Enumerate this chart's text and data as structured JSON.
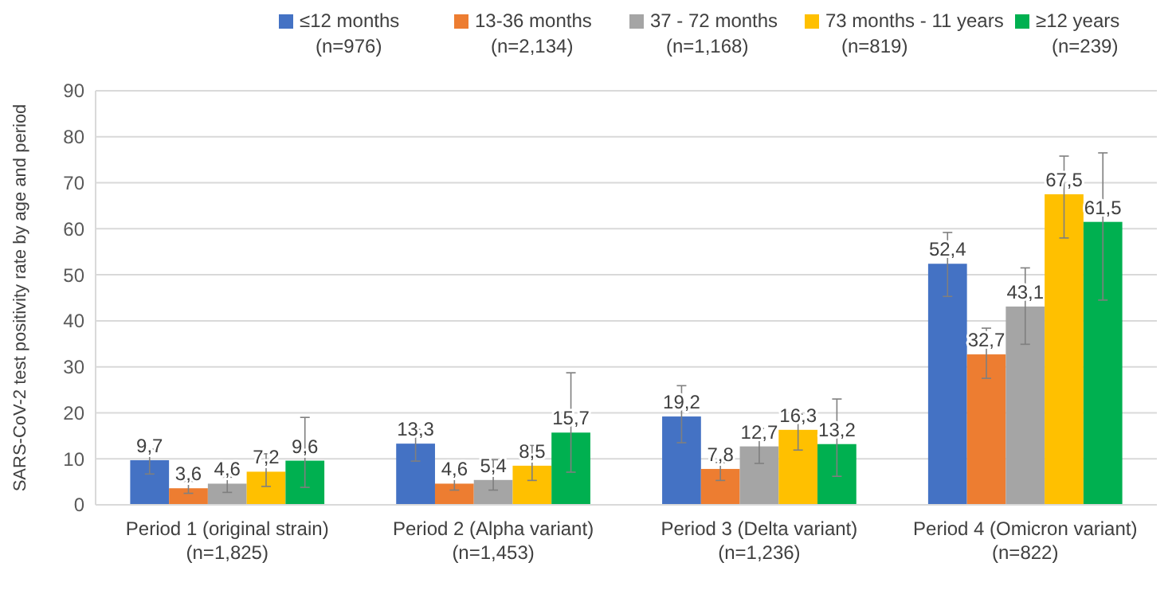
{
  "chart_data": {
    "type": "bar",
    "ylabel": "SARS-CoV-2 test positivity rate by age and period",
    "categories": [
      "Period 1 (original strain)\n(n=1,825)",
      "Period 2 (Alpha variant)\n(n=1,453)",
      "Period 3 (Delta variant)\n(n=1,236)",
      "Period 4 (Omicron variant)\n(n=822)"
    ],
    "ylim": [
      0,
      90
    ],
    "yticks": [
      0,
      10,
      20,
      30,
      40,
      50,
      60,
      70,
      80,
      90
    ],
    "grid": "y",
    "legend": "top",
    "series": [
      {
        "name": "≤12 months\n(n=976)",
        "color": "#4472c4",
        "values": [
          9.7,
          13.3,
          19.2,
          52.4
        ],
        "value_labels": [
          "9,7",
          "13,3",
          "19,2",
          "52,4"
        ],
        "errors": [
          [
            6.7,
            12.1
          ],
          [
            9.5,
            16.4
          ],
          [
            13.5,
            25.9
          ],
          [
            45.3,
            59.2
          ]
        ]
      },
      {
        "name": "13-36 months\n(n=2,134)",
        "color": "#ed7d31",
        "values": [
          3.6,
          4.6,
          7.8,
          32.7
        ],
        "value_labels": [
          "3,6",
          "4,6",
          "7,8",
          "32,7"
        ],
        "errors": [
          [
            2.5,
            5.1
          ],
          [
            3.2,
            6.4
          ],
          [
            5.3,
            9.2
          ],
          [
            27.5,
            38.4
          ]
        ]
      },
      {
        "name": "37 - 72 months\n(n=1,168)",
        "color": "#a5a5a5",
        "values": [
          4.6,
          5.4,
          12.7,
          43.1
        ],
        "value_labels": [
          "4,6",
          "5,4",
          "12,7",
          "43,1"
        ],
        "errors": [
          [
            2.7,
            6.0
          ],
          [
            3.2,
            9.8
          ],
          [
            9.0,
            16.6
          ],
          [
            34.9,
            51.5
          ]
        ]
      },
      {
        "name": "73 months - 11 years\n(n=819)",
        "color": "#ffc000",
        "values": [
          7.2,
          8.5,
          16.3,
          67.5
        ],
        "value_labels": [
          "7,2",
          "8,5",
          "16,3",
          "67,5"
        ],
        "errors": [
          [
            4.0,
            11.1
          ],
          [
            5.3,
            12.9
          ],
          [
            11.9,
            19.7
          ],
          [
            58.0,
            75.8
          ]
        ]
      },
      {
        "name": "≥12 years\n(n=239)",
        "color": "#00b050",
        "values": [
          9.6,
          15.7,
          13.2,
          61.5
        ],
        "value_labels": [
          "9,6",
          "15,7",
          "13,2",
          "61,5"
        ],
        "errors": [
          [
            3.8,
            19.0
          ],
          [
            7.1,
            28.7
          ],
          [
            6.2,
            23.0
          ],
          [
            44.5,
            76.5
          ]
        ]
      }
    ]
  }
}
